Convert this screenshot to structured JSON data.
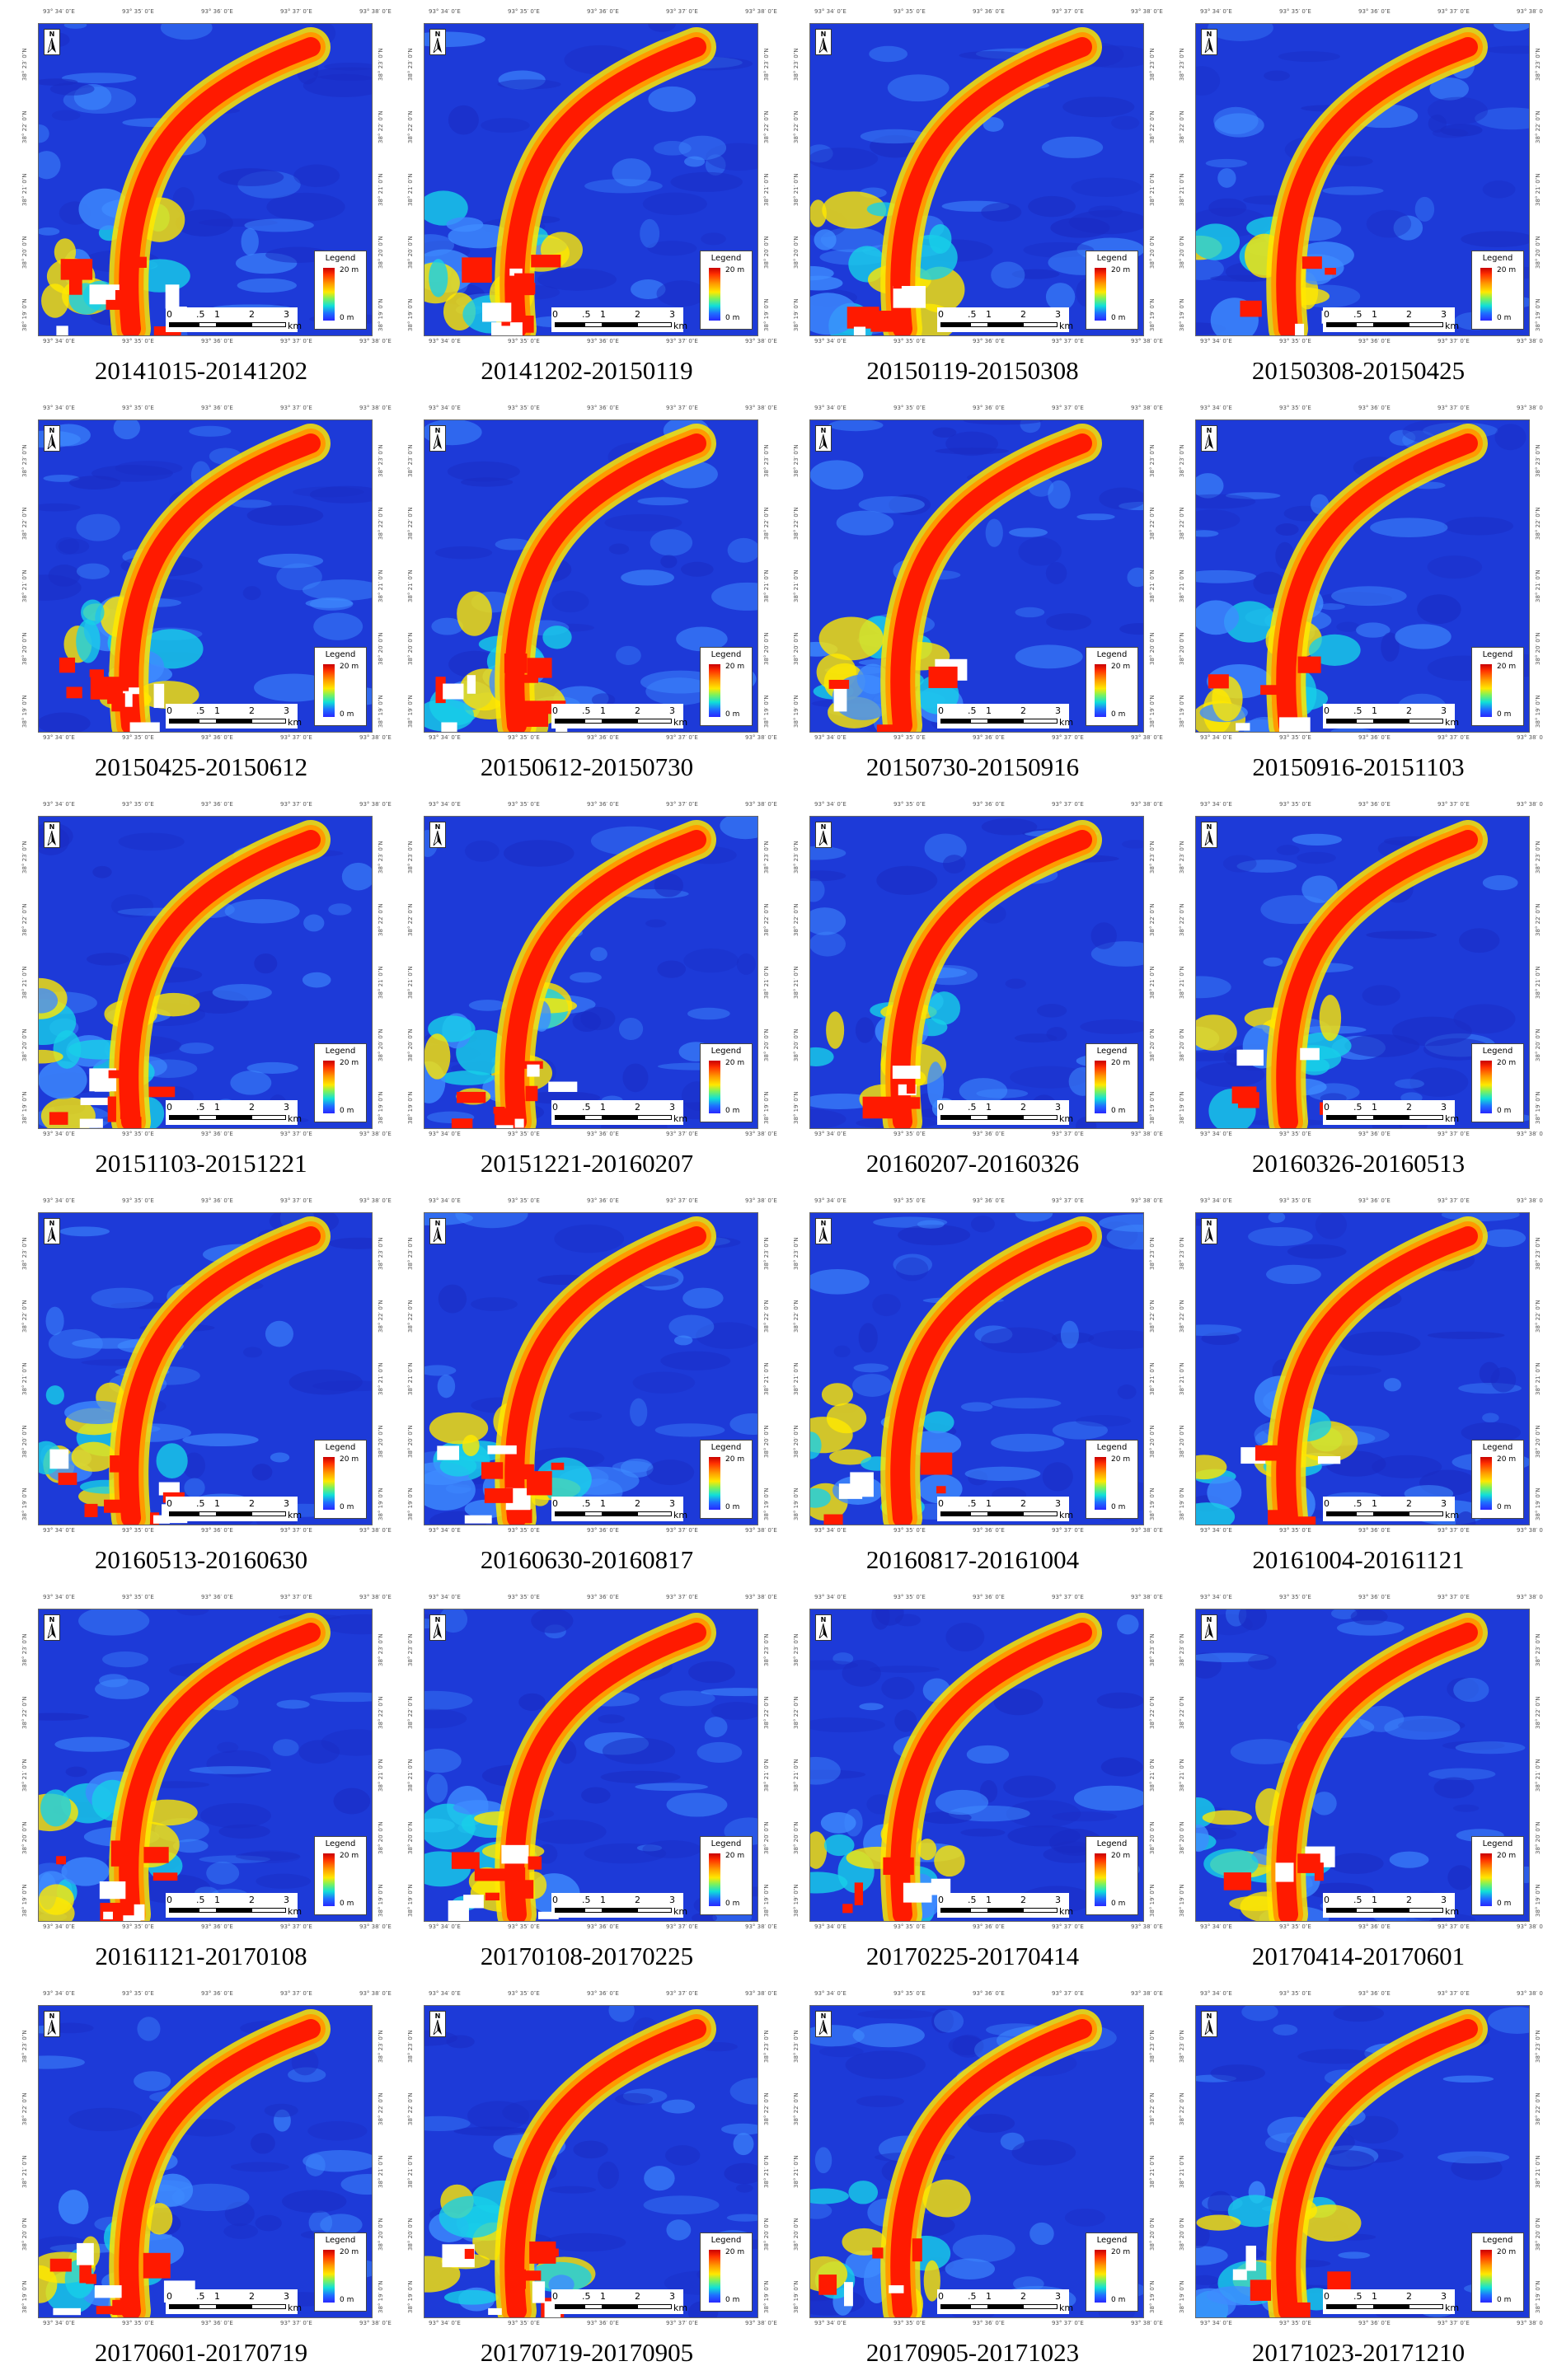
{
  "panels": [
    {
      "caption": "20141015-20141202"
    },
    {
      "caption": "20141202-20150119"
    },
    {
      "caption": "20150119-20150308"
    },
    {
      "caption": "20150308-20150425"
    },
    {
      "caption": "20150425-20150612"
    },
    {
      "caption": "20150612-20150730"
    },
    {
      "caption": "20150730-20150916"
    },
    {
      "caption": "20150916-20151103"
    },
    {
      "caption": "20151103-20151221"
    },
    {
      "caption": "20151221-20160207"
    },
    {
      "caption": "20160207-20160326"
    },
    {
      "caption": "20160326-20160513"
    },
    {
      "caption": "20160513-20160630"
    },
    {
      "caption": "20160630-20160817"
    },
    {
      "caption": "20160817-20161004"
    },
    {
      "caption": "20161004-20161121"
    },
    {
      "caption": "20161121-20170108"
    },
    {
      "caption": "20170108-20170225"
    },
    {
      "caption": "20170225-20170414"
    },
    {
      "caption": "20170414-20170601"
    },
    {
      "caption": "20170601-20170719"
    },
    {
      "caption": "20170719-20170905"
    },
    {
      "caption": "20170905-20171023"
    },
    {
      "caption": "20171023-20171210"
    }
  ],
  "legend": {
    "title": "Legend",
    "max_label": "20 m",
    "min_label": "0 m"
  },
  "scale": {
    "ticks": [
      "0",
      ".5",
      "1",
      "2",
      "3"
    ],
    "unit": "km"
  },
  "north": {
    "letter": "N"
  },
  "coords": {
    "top": [
      "93° 34′ 0″E",
      "93° 35′ 0″E",
      "93° 36′ 0″E",
      "93° 37′ 0″E",
      "93° 38′ 0″E"
    ],
    "left": [
      "38° 23′ 0″N",
      "38° 22′ 0″N",
      "38° 21′ 0″N",
      "38° 20′ 0″N",
      "38° 19′ 0″N"
    ]
  },
  "colors": {
    "background_blue": "#1d3ad8",
    "channel_red": "#ff1a00",
    "edge_orange": "#ff9a00",
    "edge_yellow": "#ffe800",
    "cyan": "#18d0e8",
    "light_blue": "#3f8cff",
    "dark_blue": "#1a2cc4"
  }
}
